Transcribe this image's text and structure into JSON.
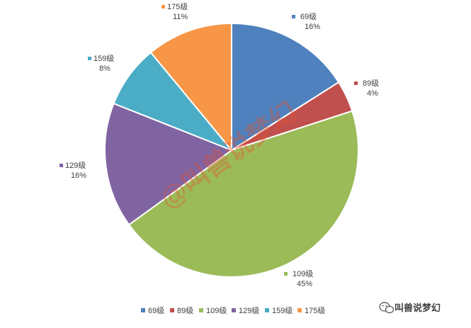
{
  "chart_data": {
    "type": "pie",
    "categories": [
      "69级",
      "89级",
      "109级",
      "129级",
      "159级",
      "175级"
    ],
    "values": [
      16,
      4,
      45,
      16,
      8,
      11
    ],
    "labels_pct": [
      "16%",
      "4%",
      "45%",
      "16%",
      "8%",
      "11%"
    ],
    "colors": [
      "#4e81bd",
      "#c0504d",
      "#9bbb59",
      "#8064a2",
      "#4bacc6",
      "#f79646"
    ],
    "legend_position": "bottom",
    "title": ""
  },
  "watermark": {
    "text": "@叫兽说梦幻"
  },
  "wechat": {
    "text": "叫兽说梦幻",
    "icon": "wechat-icon"
  }
}
